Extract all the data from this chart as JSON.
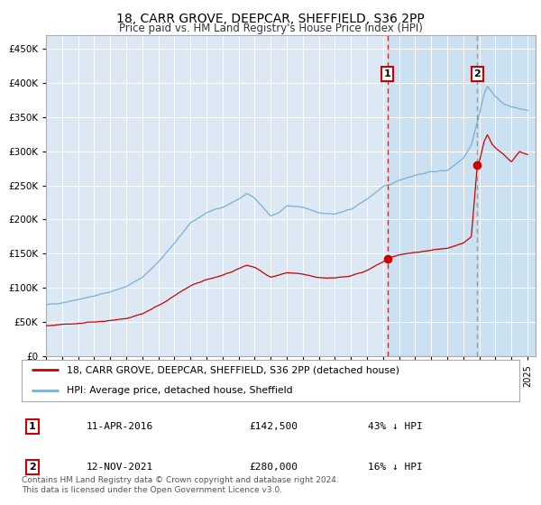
{
  "title": "18, CARR GROVE, DEEPCAR, SHEFFIELD, S36 2PP",
  "subtitle": "Price paid vs. HM Land Registry's House Price Index (HPI)",
  "title_fontsize": 10,
  "subtitle_fontsize": 8.5,
  "background_color": "#ffffff",
  "plot_bg_color": "#dce9f5",
  "grid_color": "#ffffff",
  "hpi_color": "#7bafd4",
  "property_color": "#cc0000",
  "ylim": [
    0,
    470000
  ],
  "yticks": [
    0,
    50000,
    100000,
    150000,
    200000,
    250000,
    300000,
    350000,
    400000,
    450000
  ],
  "sale1_year": 2016.27,
  "sale1_price": 142500,
  "sale2_year": 2021.87,
  "sale2_price": 280000,
  "legend_property": "18, CARR GROVE, DEEPCAR, SHEFFIELD, S36 2PP (detached house)",
  "legend_hpi": "HPI: Average price, detached house, Sheffield",
  "table_entries": [
    {
      "num": "1",
      "date": "11-APR-2016",
      "price": "£142,500",
      "pct": "43% ↓ HPI"
    },
    {
      "num": "2",
      "date": "12-NOV-2021",
      "price": "£280,000",
      "pct": "16% ↓ HPI"
    }
  ],
  "footnote": "Contains HM Land Registry data © Crown copyright and database right 2024.\nThis data is licensed under the Open Government Licence v3.0.",
  "shaded_start": 2016.27,
  "shaded_end": 2025.5,
  "xlim_start": 1995,
  "xlim_end": 2025.5
}
